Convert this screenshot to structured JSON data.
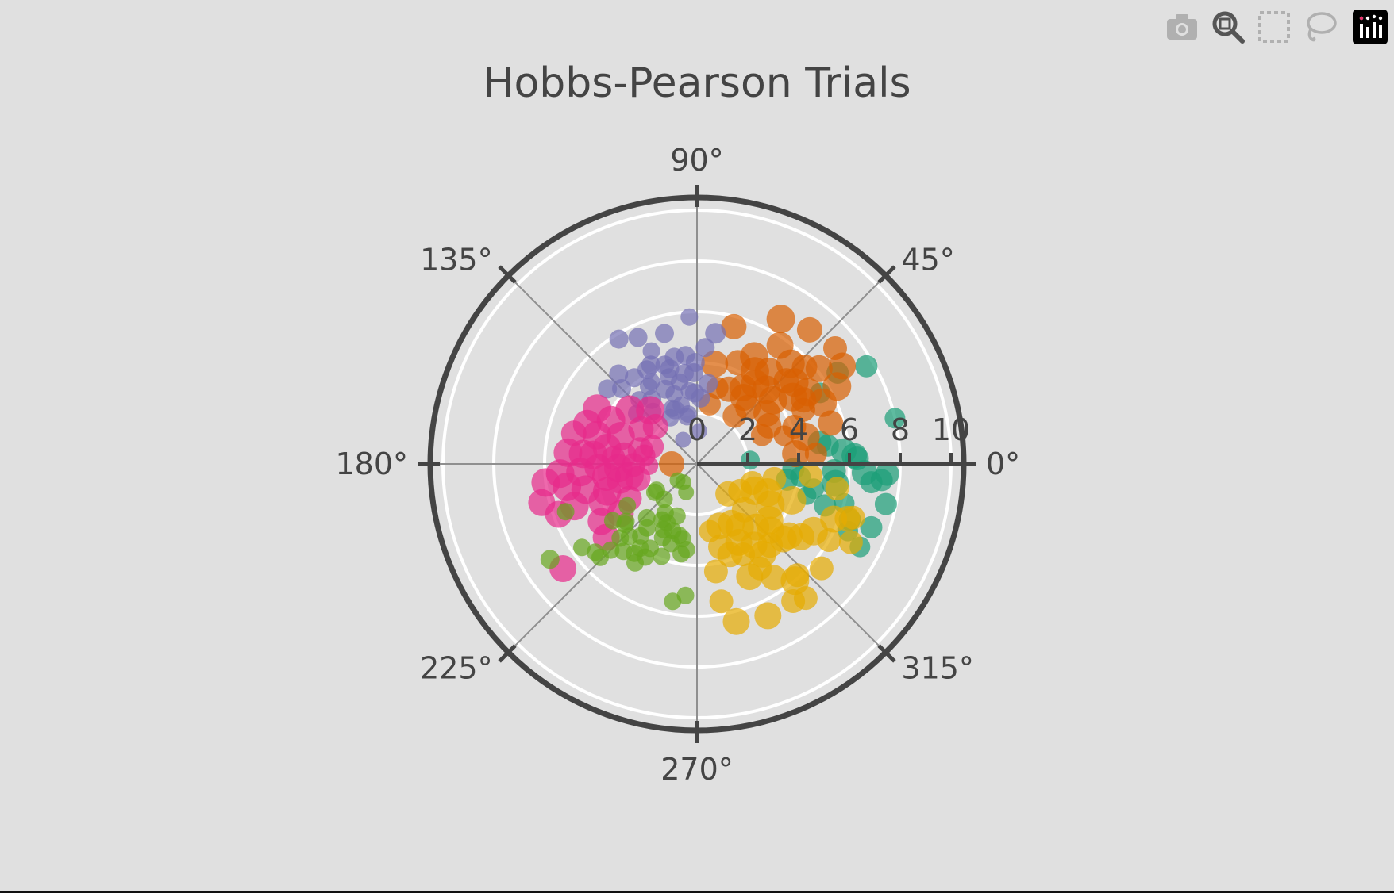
{
  "modebar": {
    "items": [
      {
        "icon": "camera-icon",
        "name": "download-plot"
      },
      {
        "icon": "zoom-icon",
        "name": "zoom"
      },
      {
        "icon": "box-select-icon",
        "name": "box-select"
      },
      {
        "icon": "lasso-select-icon",
        "name": "lasso-select"
      }
    ],
    "logo_icon": "plotly-logo-icon"
  },
  "chart_data": {
    "type": "scatter",
    "subtype": "polar-bubble",
    "title": "Hobbs-Pearson Trials",
    "angular_axis": {
      "unit": "degrees",
      "tick_labels": [
        "0°",
        "45°",
        "90°",
        "135°",
        "180°",
        "225°",
        "270°",
        "315°"
      ],
      "tick_values": [
        0,
        45,
        90,
        135,
        180,
        225,
        270,
        315
      ]
    },
    "radial_axis": {
      "range": [
        0,
        10.5
      ],
      "tick_values": [
        0,
        2,
        4,
        6,
        8,
        10
      ],
      "tick_labels": [
        "0",
        "2",
        "4",
        "6",
        "8",
        "10"
      ],
      "angle": 0
    },
    "grid": true,
    "legend": "none",
    "opacity": 0.7,
    "series": [
      {
        "color": "#1b9e77",
        "points": [
          [
            5.2,
            8,
            14
          ],
          [
            5.8,
            5,
            16
          ],
          [
            6.3,
            2,
            15
          ],
          [
            6.6,
            -3,
            16
          ],
          [
            5.5,
            -8,
            17
          ],
          [
            4.9,
            10,
            15
          ],
          [
            7.3,
            -5,
            14
          ],
          [
            7.6,
            -12,
            14
          ],
          [
            8.0,
            13,
            13
          ],
          [
            7.7,
            30,
            14
          ],
          [
            6.6,
            33,
            14
          ],
          [
            5.6,
            30,
            13
          ],
          [
            6.4,
            -20,
            14
          ],
          [
            7.3,
            -20,
            14
          ],
          [
            7.2,
            -27,
            13
          ],
          [
            6.5,
            -24,
            13
          ],
          [
            6.0,
            -15,
            13
          ],
          [
            5.3,
            -18,
            14
          ],
          [
            4.7,
            -12,
            13
          ],
          [
            4.1,
            -7,
            13
          ],
          [
            3.6,
            -10,
            14
          ],
          [
            5.4,
            -3,
            15
          ],
          [
            6.2,
            3,
            16
          ],
          [
            2.1,
            4,
            12
          ],
          [
            7.5,
            -3,
            15
          ],
          [
            6.9,
            -6,
            14
          ],
          [
            4.5,
            -16,
            12
          ],
          [
            3.8,
            -3,
            14
          ]
        ]
      },
      {
        "color": "#d95f02",
        "points": [
          [
            1.0,
            180,
            16
          ],
          [
            2.4,
            78,
            14
          ],
          [
            4.8,
            62,
            18
          ],
          [
            6.6,
            60,
            18
          ],
          [
            6.9,
            50,
            16
          ],
          [
            7.1,
            40,
            15
          ],
          [
            6.9,
            34,
            17
          ],
          [
            6.3,
            29,
            18
          ],
          [
            5.5,
            26,
            18
          ],
          [
            5.4,
            47,
            18
          ],
          [
            5.0,
            40,
            18
          ],
          [
            4.6,
            35,
            18
          ],
          [
            4.6,
            52,
            18
          ],
          [
            4.3,
            58,
            18
          ],
          [
            3.9,
            54,
            18
          ],
          [
            3.2,
            67,
            16
          ],
          [
            3.2,
            55,
            17
          ],
          [
            4.0,
            47,
            18
          ],
          [
            4.8,
            43,
            16
          ],
          [
            5.7,
            42,
            16
          ],
          [
            6.1,
            38,
            17
          ],
          [
            5.2,
            33,
            18
          ],
          [
            4.7,
            27,
            15
          ],
          [
            4.1,
            21,
            15
          ],
          [
            3.6,
            18,
            13
          ],
          [
            3.9,
            6,
            17
          ],
          [
            4.7,
            5,
            14
          ],
          [
            5.5,
            17,
            16
          ],
          [
            4.3,
            68,
            16
          ],
          [
            3.5,
            59,
            17
          ],
          [
            3.0,
            48,
            16
          ],
          [
            2.4,
            52,
            15
          ],
          [
            3.9,
            40,
            18
          ],
          [
            4.4,
            14,
            18
          ],
          [
            2.8,
            24,
            14
          ],
          [
            5.7,
            55,
            17
          ],
          [
            4.0,
            80,
            17
          ],
          [
            5.6,
            75,
            16
          ],
          [
            4.9,
            31,
            16
          ],
          [
            3.4,
            36,
            17
          ],
          [
            3.1,
            75,
            14
          ],
          [
            3.2,
            28,
            16
          ]
        ]
      },
      {
        "color": "#7570b3",
        "points": [
          [
            4.0,
            91,
            12
          ],
          [
            4.6,
            86,
            12
          ],
          [
            5.2,
            82,
            13
          ],
          [
            4.3,
            102,
            12
          ],
          [
            3.9,
            106,
            12
          ],
          [
            3.6,
            98,
            12
          ],
          [
            2.8,
            92,
            12
          ],
          [
            2.4,
            114,
            11
          ],
          [
            3.2,
            113,
            12
          ],
          [
            4.2,
            126,
            12
          ],
          [
            4.3,
            115,
            12
          ],
          [
            4.1,
            108,
            12
          ],
          [
            3.6,
            108,
            11
          ],
          [
            2.9,
            108,
            11
          ],
          [
            2.4,
            105,
            11
          ],
          [
            2.0,
            100,
            11
          ],
          [
            3.1,
            125,
            12
          ],
          [
            4.7,
            131,
            12
          ],
          [
            5.8,
            122,
            12
          ],
          [
            5.5,
            115,
            12
          ],
          [
            4.8,
            112,
            11
          ],
          [
            4.2,
            118,
            12
          ],
          [
            3.6,
            122,
            11
          ],
          [
            3.3,
            102,
            11
          ],
          [
            2.6,
            87,
            12
          ],
          [
            3.2,
            82,
            12
          ],
          [
            4.3,
            96,
            12
          ],
          [
            5.3,
            104,
            12
          ],
          [
            5.8,
            93,
            11
          ],
          [
            2.9,
            96,
            11
          ],
          [
            3.6,
            92,
            12
          ],
          [
            1.3,
            86,
            10
          ],
          [
            1.9,
            102,
            11
          ],
          [
            2.1,
            120,
            11
          ],
          [
            3.4,
            132,
            11
          ],
          [
            4.6,
            140,
            12
          ],
          [
            2.7,
            130,
            11
          ],
          [
            3.1,
            140,
            11
          ],
          [
            3.7,
            119,
            11
          ],
          [
            4.2,
            135,
            12
          ],
          [
            1.1,
            120,
            10
          ],
          [
            2.3,
            112,
            12
          ]
        ]
      },
      {
        "color": "#e7298a",
        "points": [
          [
            4.5,
            151,
            18
          ],
          [
            5.0,
            166,
            16
          ],
          [
            4.6,
            160,
            18
          ],
          [
            4.1,
            164,
            18
          ],
          [
            3.6,
            170,
            18
          ],
          [
            2.9,
            173,
            16
          ],
          [
            2.5,
            181,
            15
          ],
          [
            3.1,
            183,
            18
          ],
          [
            3.9,
            182,
            17
          ],
          [
            4.6,
            184,
            18
          ],
          [
            5.4,
            184,
            18
          ],
          [
            6.0,
            187,
            18
          ],
          [
            6.3,
            194,
            17
          ],
          [
            5.8,
            200,
            17
          ],
          [
            5.1,
            199,
            18
          ],
          [
            4.5,
            193,
            18
          ],
          [
            3.7,
            197,
            18
          ],
          [
            3.1,
            192,
            17
          ],
          [
            2.4,
            194,
            16
          ],
          [
            1.9,
            182,
            12
          ],
          [
            2.3,
            166,
            16
          ],
          [
            3.2,
            160,
            18
          ],
          [
            3.8,
            153,
            18
          ],
          [
            3.4,
            141,
            18
          ],
          [
            2.6,
            148,
            16
          ],
          [
            2.8,
            131,
            18
          ],
          [
            2.2,
            138,
            16
          ],
          [
            1.9,
            159,
            15
          ],
          [
            6.7,
            218,
            17
          ],
          [
            4.4,
            211,
            17
          ],
          [
            3.6,
            213,
            17
          ],
          [
            3.0,
            207,
            16
          ],
          [
            4.6,
            219,
            17
          ],
          [
            5.2,
            190,
            18
          ],
          [
            5.1,
            175,
            18
          ],
          [
            4.1,
            175,
            18
          ],
          [
            2.7,
            190,
            18
          ],
          [
            3.6,
            188,
            18
          ],
          [
            4.0,
            202,
            18
          ],
          [
            2.1,
            171,
            14
          ],
          [
            3.3,
            176,
            15
          ],
          [
            4.5,
            175,
            18
          ]
        ]
      },
      {
        "color": "#66a61e",
        "points": [
          [
            0.9,
            233,
            10
          ],
          [
            1.2,
            249,
            10
          ],
          [
            1.9,
            227,
            11
          ],
          [
            1.9,
            213,
            11
          ],
          [
            2.9,
            227,
            11
          ],
          [
            3.2,
            211,
            11
          ],
          [
            3.7,
            220,
            11
          ],
          [
            4.2,
            224,
            11
          ],
          [
            4.5,
            230,
            11
          ],
          [
            4.6,
            238,
            11
          ],
          [
            4.2,
            241,
            11
          ],
          [
            3.9,
            249,
            11
          ],
          [
            3.3,
            252,
            11
          ],
          [
            2.9,
            256,
            11
          ],
          [
            2.6,
            243,
            11
          ],
          [
            2.6,
            238,
            11
          ],
          [
            2.3,
            237,
            11
          ],
          [
            2.9,
            243,
            11
          ],
          [
            3.2,
            232,
            11
          ],
          [
            3.6,
            232,
            11
          ],
          [
            3.9,
            227,
            11
          ],
          [
            4.0,
            236,
            11
          ],
          [
            4.8,
            225,
            11
          ],
          [
            5.3,
            221,
            11
          ],
          [
            5.6,
            216,
            11
          ],
          [
            5.5,
            200,
            11
          ],
          [
            4.0,
            214,
            11
          ],
          [
            3.6,
            219,
            11
          ],
          [
            2.8,
            250,
            11
          ],
          [
            3.2,
            245,
            11
          ],
          [
            3.8,
            241,
            11
          ],
          [
            4.3,
            235,
            11
          ],
          [
            5.3,
            224,
            11
          ],
          [
            6.9,
            213,
            12
          ],
          [
            5.5,
            260,
            11
          ],
          [
            3.4,
            263,
            11
          ],
          [
            3.0,
            259,
            11
          ],
          [
            2.2,
            249,
            11
          ],
          [
            5.2,
            265,
            11
          ],
          [
            3.6,
            260,
            11
          ],
          [
            1.0,
            220,
            10
          ],
          [
            2.0,
            214,
            11
          ]
        ]
      },
      {
        "color": "#e6ab02",
        "points": [
          [
            1.7,
            316,
            16
          ],
          [
            2.6,
            290,
            17
          ],
          [
            2.7,
            300,
            17
          ],
          [
            3.5,
            298,
            17
          ],
          [
            3.9,
            305,
            17
          ],
          [
            4.3,
            312,
            16
          ],
          [
            4.4,
            306,
            17
          ],
          [
            4.6,
            322,
            17
          ],
          [
            5.3,
            330,
            18
          ],
          [
            5.8,
            338,
            17
          ],
          [
            6.3,
            340,
            16
          ],
          [
            6.0,
            330,
            15
          ],
          [
            5.0,
            325,
            17
          ],
          [
            4.5,
            319,
            17
          ],
          [
            3.9,
            318,
            17
          ],
          [
            3.4,
            313,
            17
          ],
          [
            3.0,
            304,
            18
          ],
          [
            2.6,
            316,
            16
          ],
          [
            2.0,
            328,
            15
          ],
          [
            2.3,
            341,
            15
          ],
          [
            3.1,
            349,
            15
          ],
          [
            4.5,
            354,
            15
          ],
          [
            5.6,
            350,
            15
          ],
          [
            6.5,
            341,
            15
          ],
          [
            6.8,
            333,
            15
          ],
          [
            6.4,
            320,
            15
          ],
          [
            5.9,
            312,
            15
          ],
          [
            6.8,
            309,
            15
          ],
          [
            6.6,
            305,
            15
          ],
          [
            5.4,
            304,
            16
          ],
          [
            4.8,
            301,
            15
          ],
          [
            4.0,
            297,
            15
          ],
          [
            3.4,
            286,
            16
          ],
          [
            2.7,
            281,
            14
          ],
          [
            4.3,
            280,
            15
          ],
          [
            5.5,
            280,
            15
          ],
          [
            6.4,
            284,
            17
          ],
          [
            6.0,
            310,
            18
          ],
          [
            3.6,
            322,
            18
          ],
          [
            4.0,
            339,
            18
          ],
          [
            3.3,
            331,
            18
          ],
          [
            2.5,
            335,
            18
          ],
          [
            3.0,
            338,
            18
          ],
          [
            6.6,
            295,
            17
          ],
          [
            3.8,
            290,
            16
          ],
          [
            4.9,
            295,
            17
          ]
        ]
      }
    ]
  }
}
